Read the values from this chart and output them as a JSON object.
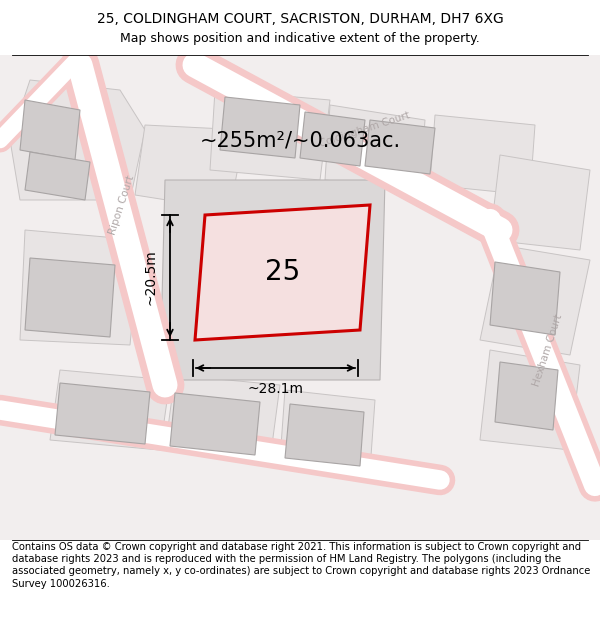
{
  "title_line1": "25, COLDINGHAM COURT, SACRISTON, DURHAM, DH7 6XG",
  "title_line2": "Map shows position and indicative extent of the property.",
  "footer_text": "Contains OS data © Crown copyright and database right 2021. This information is subject to Crown copyright and database rights 2023 and is reproduced with the permission of HM Land Registry. The polygons (including the associated geometry, namely x, y co-ordinates) are subject to Crown copyright and database rights 2023 Ordnance Survey 100026316.",
  "area_label": "~255m²/~0.063ac.",
  "number_label": "25",
  "width_label": "~28.1m",
  "height_label": "~20.5m",
  "bg_color": "#f2eeee",
  "building_fill": "#d8d4d4",
  "building_edge": "#b0aaaa",
  "road_fill": "#f5c8c8",
  "road_edge": "#e8b0b0",
  "property_fill": "#f5e0e0",
  "property_edge": "#cc0000",
  "road_label_color": "#b0a8a8",
  "title_fontsize": 10,
  "subtitle_fontsize": 9,
  "footer_fontsize": 7.2,
  "area_fontsize": 15,
  "number_fontsize": 20,
  "dim_fontsize": 10
}
